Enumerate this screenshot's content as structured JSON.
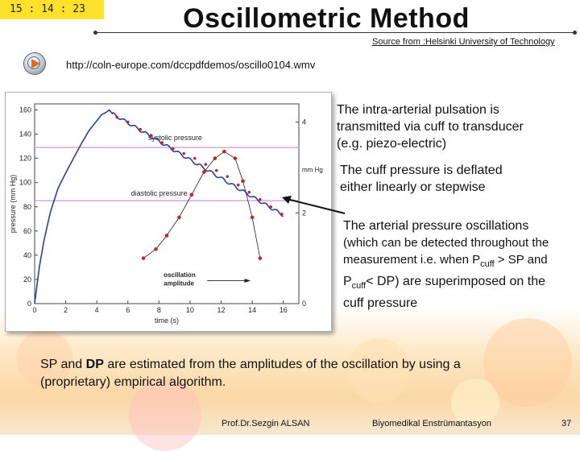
{
  "clock": "15 : 14 : 23",
  "title": "Oscillometric Method",
  "source": "Source from :Helsinki University of Technology",
  "media": {
    "icon": "media-player-icon",
    "url": "http://coln-europe.com/dccpdfdemos/oscillo0104.wmv"
  },
  "text_blocks": {
    "line1": "The intra-arterial pulsation is",
    "line2": "transmitted via  cuff to transducer",
    "line3": "(e.g. piezo-electric)",
    "deflate1": "The cuff pressure is deflated",
    "deflate2": "either linearly or stepwise",
    "osc1": "The arterial pressure oscillations",
    "osc2": "(which can be detected throughout the",
    "osc3a": "measurement i.e. when P",
    "osc3sub": "cuff",
    "osc3b": " > SP and",
    "osc4a": "P",
    "osc4sub": "cuff",
    "osc4b": "< DP) are superimposed on the",
    "osc5": "cuff pressure"
  },
  "bottom": {
    "pre": "SP and ",
    "dp": "DP",
    "post": " are estimated from the amplitudes  of the oscillation by using  a",
    "line2": "(proprietary) empirical algorithm."
  },
  "footer": {
    "author": "Prof.Dr.Sezgin ALSAN",
    "course": "Biyomedikal Enstrümantasyon",
    "page": "37"
  },
  "chart_data": {
    "type": "line",
    "xlabel": "time (s)",
    "ylabel": "pressure (mm Hg)",
    "y2label": "mm Hg",
    "xlim": [
      0,
      17
    ],
    "ylim": [
      0,
      165
    ],
    "y2lim": [
      0,
      4.4
    ],
    "xticks": [
      0,
      2,
      4,
      6,
      8,
      10,
      12,
      14,
      16
    ],
    "yticks": [
      0,
      20,
      40,
      60,
      80,
      100,
      120,
      140,
      160
    ],
    "y2ticks": [
      0,
      2,
      4
    ],
    "annotations": {
      "systolic": "systolic pressure",
      "diastolic": "diastolic pressure",
      "amplitude1": "oscillation",
      "amplitude2": "amplitude"
    },
    "reference_lines": [
      {
        "name": "systolic pressure",
        "y": 129,
        "color": "#d9a7d9"
      },
      {
        "name": "diastolic pressure",
        "y": 85,
        "color": "#d9a7d9"
      }
    ],
    "series": [
      {
        "role": "cuff pressure",
        "axis": "left",
        "color": "#2b3f9e",
        "x": [
          0,
          0.1,
          0.3,
          0.6,
          1.0,
          1.5,
          2.0,
          2.5,
          3.0,
          3.5,
          4.0,
          4.3,
          4.6,
          4.8,
          5.0,
          16
        ],
        "y": [
          0,
          10,
          30,
          52,
          75,
          95,
          108,
          120,
          132,
          143,
          151,
          156,
          158,
          160,
          157,
          73
        ]
      },
      {
        "role": "cuff pressure markers",
        "axis": "left",
        "color": "#cc2222",
        "x": [
          5.3,
          6.0,
          6.8,
          7.5,
          8.2,
          8.9,
          9.6,
          10.3,
          11.0,
          11.7,
          12.4,
          13.1,
          13.8,
          14.5,
          15.2,
          15.9
        ],
        "y": [
          154,
          150,
          144,
          139,
          133,
          128,
          124,
          120,
          115,
          110,
          105,
          98,
          92,
          86,
          80,
          74
        ]
      },
      {
        "role": "oscillation amplitude",
        "axis": "right",
        "color": "#cc2222",
        "x": [
          7,
          7.8,
          8.5,
          9.3,
          10.1,
          10.9,
          11.6,
          12.2,
          12.9,
          13.4,
          14.0,
          14.5
        ],
        "y": [
          1.0,
          1.2,
          1.5,
          1.9,
          2.4,
          2.9,
          3.2,
          3.35,
          3.2,
          2.7,
          1.9,
          1.0
        ]
      }
    ]
  }
}
